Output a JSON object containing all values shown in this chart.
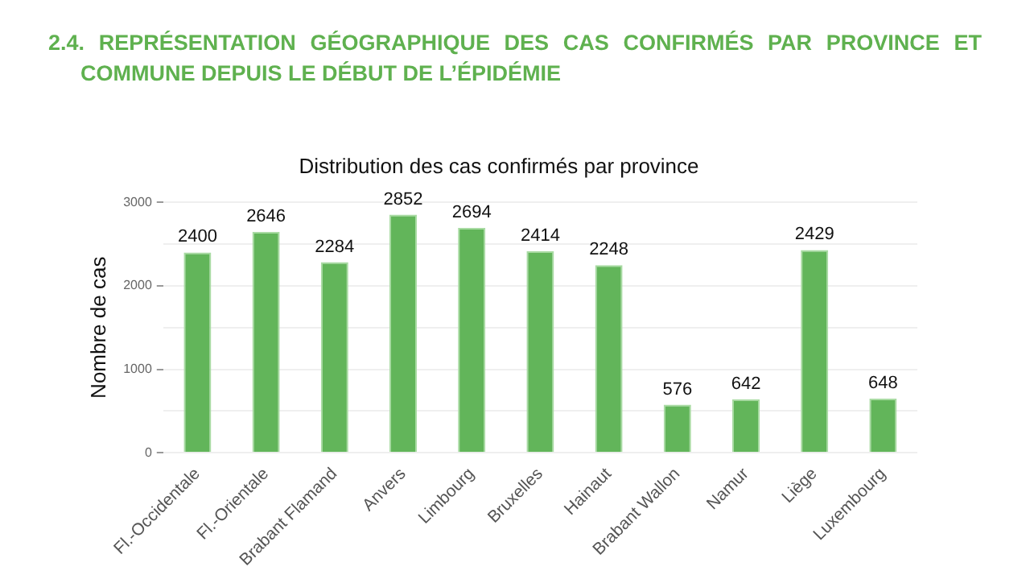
{
  "chart_data": {
    "type": "bar",
    "title": "Distribution des cas confirmés par province",
    "subtitle": "2.4. REPRÉSENTATION GÉOGRAPHIQUE DES CAS CONFIRMÉS PAR PROVINCE ET COMMUNE DEPUIS LE DÉBUT DE L’ÉPIDÉMIE",
    "ylabel": "Nombre de cas",
    "categories": [
      "Fl.-Occidentale",
      "Fl.-Orientale",
      "Brabant Flamand",
      "Anvers",
      "Limbourg",
      "Bruxelles",
      "Hainaut",
      "Brabant Wallon",
      "Namur",
      "Liège",
      "Luxembourg"
    ],
    "values": [
      2400,
      2646,
      2284,
      2852,
      2694,
      2414,
      2248,
      576,
      642,
      2429,
      648
    ],
    "color": "#62b55a",
    "ylim": [
      0,
      3000
    ],
    "yticks": [
      0,
      {
        "value": 500,
        "label": null
      },
      1000,
      {
        "value": 1500,
        "label": null
      },
      2000,
      {
        "value": 2500,
        "label": null
      },
      3000
    ],
    "grid": "y",
    "data_labels": true,
    "legend": false
  }
}
